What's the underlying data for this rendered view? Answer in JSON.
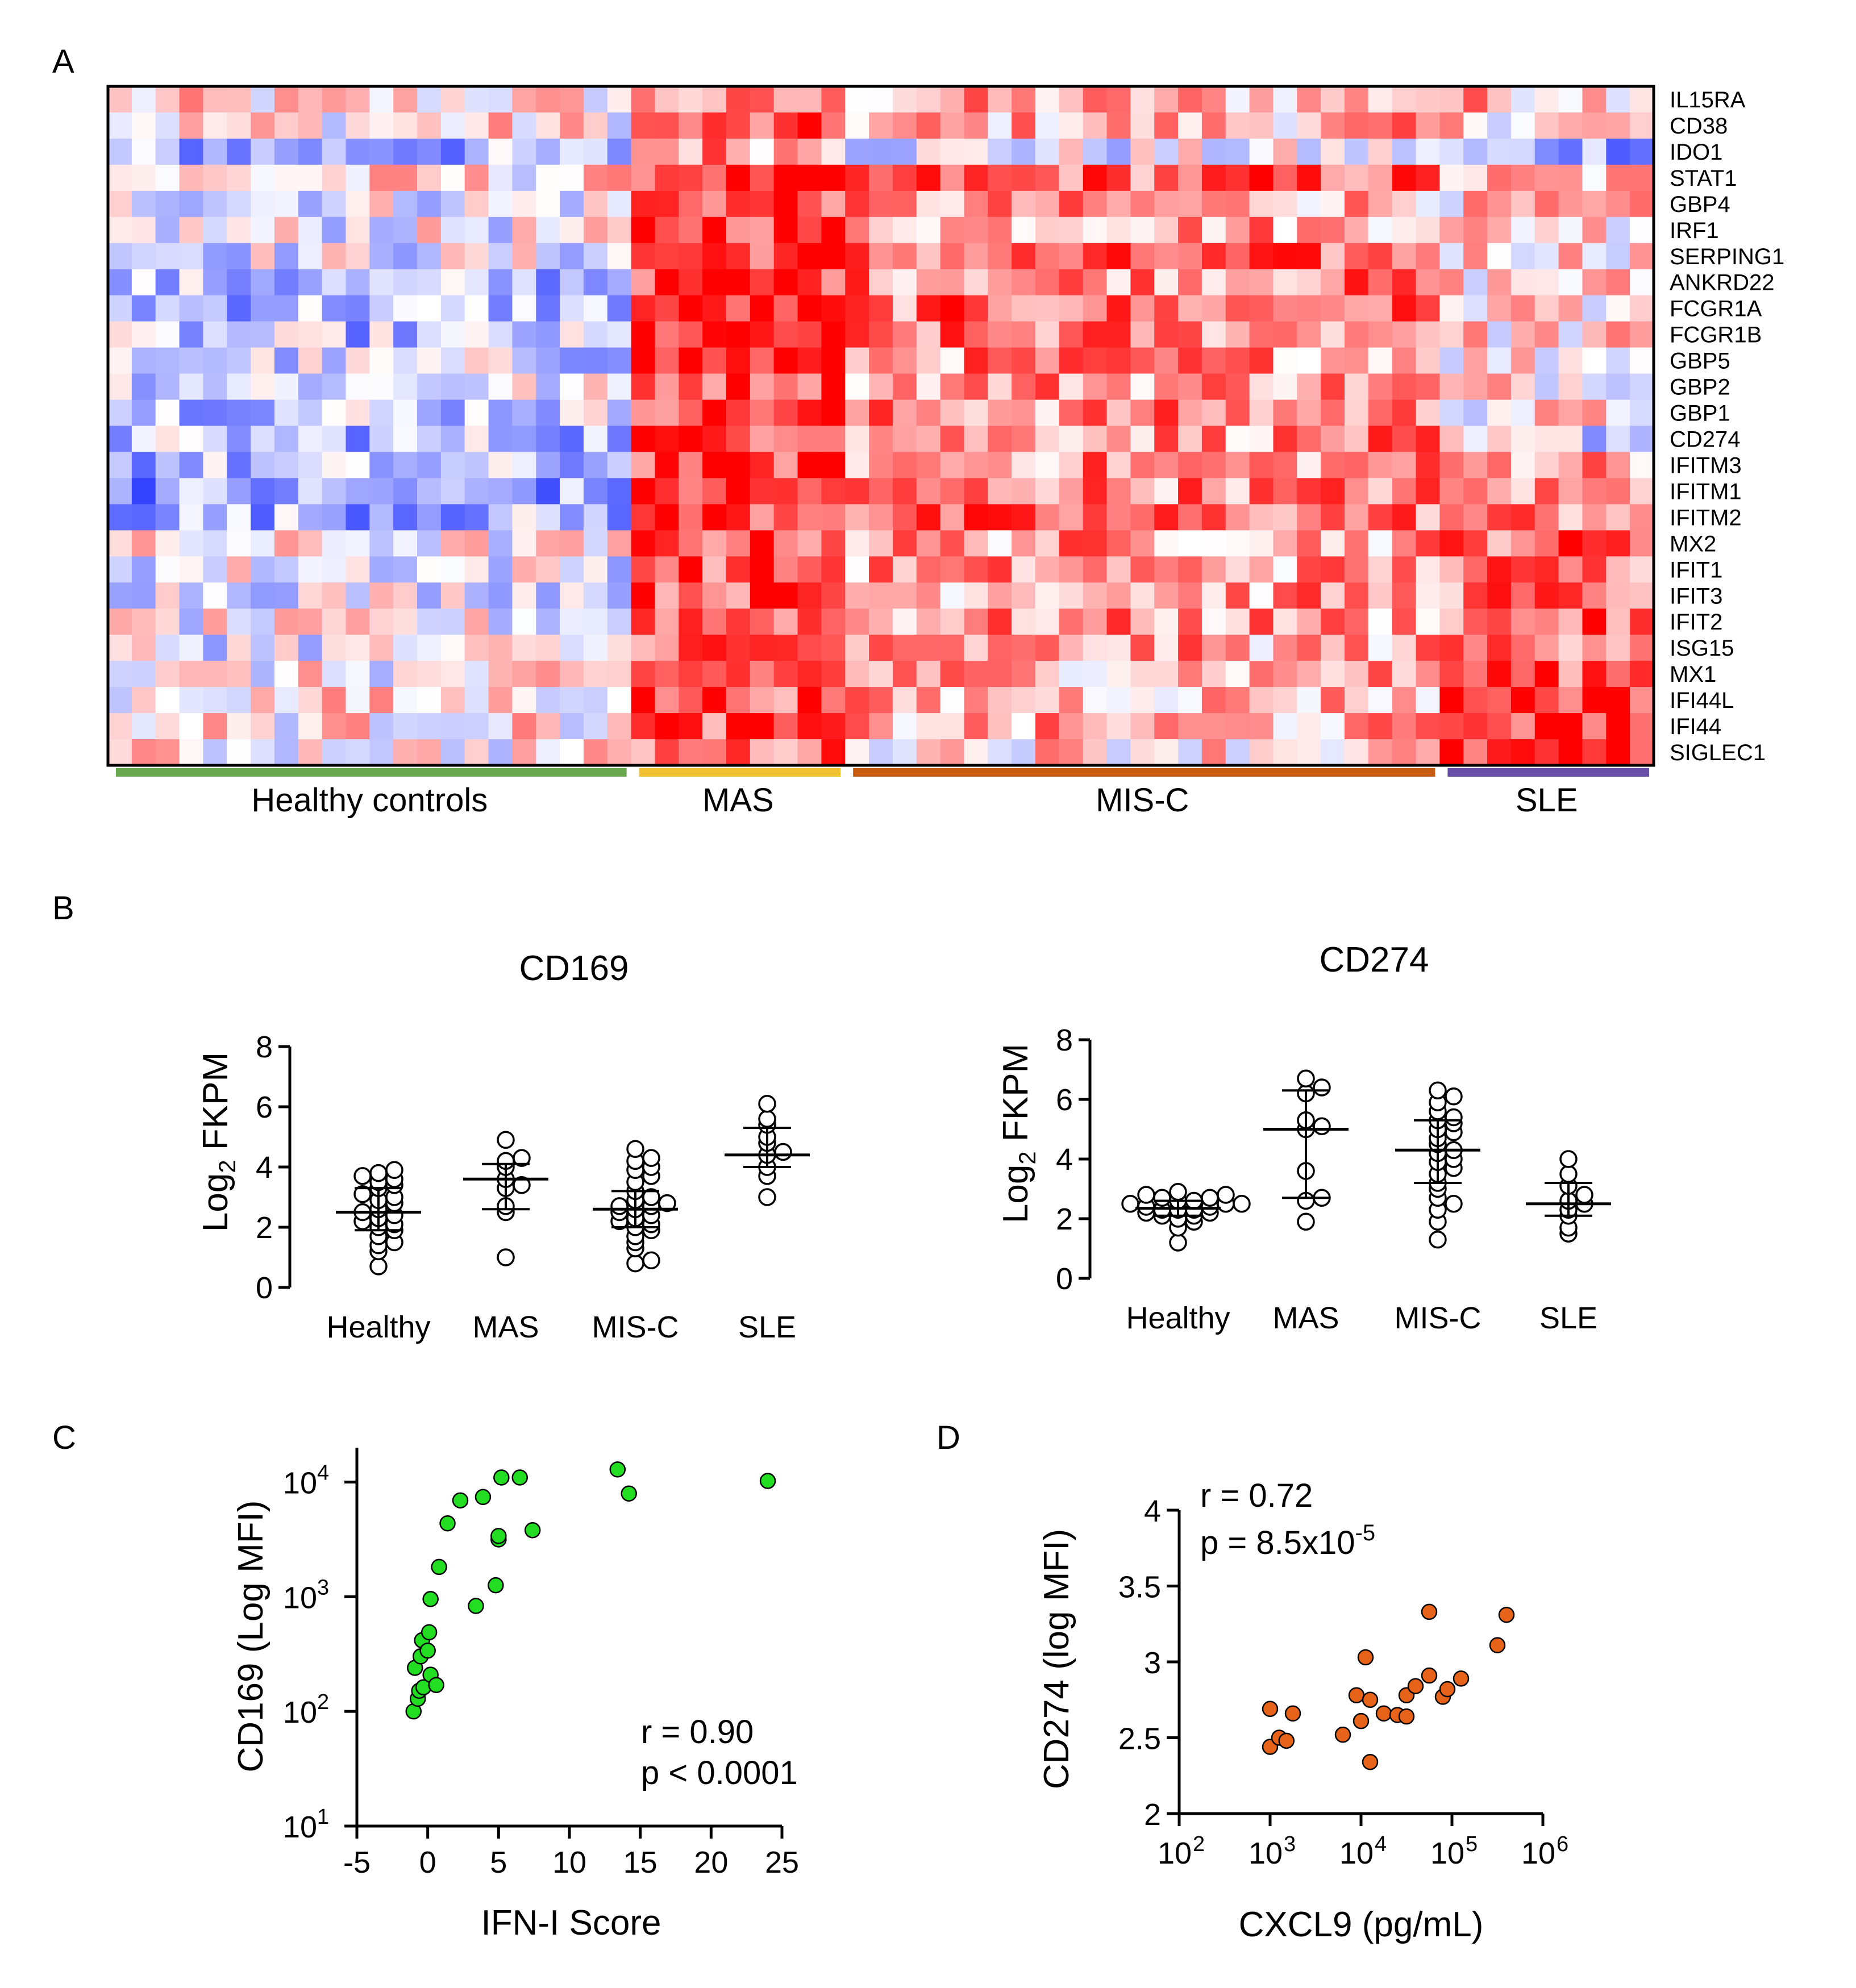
{
  "panels": {
    "a": "A",
    "b": "B",
    "c": "C",
    "d": "D"
  },
  "heatmap": {
    "genes": [
      "IL15RA",
      "CD38",
      "IDO1",
      "STAT1",
      "GBP4",
      "IRF1",
      "SERPING1",
      "ANKRD22",
      "FCGR1A",
      "FCGR1B",
      "GBP5",
      "GBP2",
      "GBP1",
      "CD274",
      "IFITM3",
      "IFITM1",
      "IFITM2",
      "MX2",
      "IFIT1",
      "IFIT3",
      "IFIT2",
      "ISG15",
      "MX1",
      "IFI44L",
      "IFI44",
      "SIGLEC1"
    ],
    "n_columns": 65,
    "color_low": "#1a2cff",
    "color_mid": "#ffffff",
    "color_high": "#ff0000",
    "groups": [
      {
        "label": "Healthy controls",
        "n": 22,
        "color": "#6aa84f"
      },
      {
        "label": "MAS",
        "n": 9,
        "color": "#f1c232"
      },
      {
        "label": "MIS-C",
        "n": 25,
        "color": "#c55a11"
      },
      {
        "label": "SLE",
        "n": 9,
        "color": "#674ea7"
      }
    ],
    "pattern": [
      {
        "gene": "IL15RA",
        "bias": [
          0.1,
          0.35,
          0.3,
          0.3
        ]
      },
      {
        "gene": "CD38",
        "bias": [
          0.1,
          0.55,
          0.3,
          0.2
        ]
      },
      {
        "gene": "IDO1",
        "bias": [
          -0.4,
          0.45,
          -0.1,
          -0.35
        ]
      },
      {
        "gene": "STAT1",
        "bias": [
          0.1,
          0.85,
          0.6,
          0.25
        ]
      },
      {
        "gene": "GBP4",
        "bias": [
          -0.05,
          0.75,
          0.35,
          0.15
        ]
      },
      {
        "gene": "IRF1",
        "bias": [
          -0.05,
          0.8,
          0.4,
          0.2
        ]
      },
      {
        "gene": "SERPING1",
        "bias": [
          -0.1,
          0.8,
          0.55,
          0.2
        ]
      },
      {
        "gene": "ANKRD22",
        "bias": [
          -0.35,
          0.8,
          0.5,
          0.15
        ]
      },
      {
        "gene": "FCGR1A",
        "bias": [
          -0.3,
          0.8,
          0.55,
          0.2
        ]
      },
      {
        "gene": "FCGR1B",
        "bias": [
          -0.3,
          0.8,
          0.5,
          0.15
        ]
      },
      {
        "gene": "GBP5",
        "bias": [
          -0.2,
          0.8,
          0.45,
          0.1
        ]
      },
      {
        "gene": "GBP2",
        "bias": [
          -0.1,
          0.75,
          0.45,
          0.15
        ]
      },
      {
        "gene": "GBP1",
        "bias": [
          -0.2,
          0.8,
          0.45,
          0.1
        ]
      },
      {
        "gene": "CD274",
        "bias": [
          -0.3,
          0.8,
          0.45,
          -0.15
        ]
      },
      {
        "gene": "IFITM3",
        "bias": [
          -0.35,
          0.75,
          0.45,
          0.45
        ]
      },
      {
        "gene": "IFITM1",
        "bias": [
          -0.45,
          0.75,
          0.5,
          0.4
        ]
      },
      {
        "gene": "IFITM2",
        "bias": [
          -0.35,
          0.75,
          0.55,
          0.5
        ]
      },
      {
        "gene": "MX2",
        "bias": [
          0.0,
          0.7,
          0.4,
          0.65
        ]
      },
      {
        "gene": "IFIT1",
        "bias": [
          -0.05,
          0.7,
          0.4,
          0.55
        ]
      },
      {
        "gene": "IFIT3",
        "bias": [
          -0.05,
          0.7,
          0.4,
          0.55
        ]
      },
      {
        "gene": "IFIT2",
        "bias": [
          -0.05,
          0.7,
          0.4,
          0.55
        ]
      },
      {
        "gene": "ISG15",
        "bias": [
          -0.05,
          0.7,
          0.35,
          0.6
        ]
      },
      {
        "gene": "MX1",
        "bias": [
          0.0,
          0.7,
          0.35,
          0.7
        ]
      },
      {
        "gene": "IFI44L",
        "bias": [
          0.1,
          0.7,
          0.3,
          0.85
        ]
      },
      {
        "gene": "IFI44",
        "bias": [
          0.1,
          0.7,
          0.3,
          0.85
        ]
      },
      {
        "gene": "SIGLEC1",
        "bias": [
          0.05,
          0.55,
          0.2,
          0.75
        ]
      }
    ]
  },
  "chart_data": [
    {
      "id": "B-left",
      "type": "scatter",
      "title": "CD169",
      "ylabel": "Log2 FKPM",
      "ylabel_main": "Log",
      "ylabel_sub": "2",
      "ylabel_rest": " FKPM",
      "ylim": [
        0,
        8
      ],
      "yticks": [
        "0",
        "2",
        "4",
        "6",
        "8"
      ],
      "categories": [
        "Healthy",
        "MAS",
        "MIS-C",
        "SLE"
      ],
      "series": [
        {
          "name": "Healthy",
          "values": [
            0.7,
            1.2,
            1.4,
            1.5,
            1.7,
            1.9,
            2.0,
            2.1,
            2.2,
            2.3,
            2.4,
            2.5,
            2.6,
            2.8,
            2.9,
            3.0,
            3.1,
            3.3,
            3.4,
            3.5,
            3.6,
            3.7,
            3.8,
            3.9
          ],
          "median": 2.5,
          "q1": 1.9,
          "q3": 3.3
        },
        {
          "name": "MAS",
          "values": [
            1.0,
            2.5,
            2.7,
            3.3,
            3.4,
            3.6,
            4.0,
            4.2,
            4.3,
            4.9
          ],
          "median": 3.6,
          "q1": 2.6,
          "q3": 4.1
        },
        {
          "name": "MIS-C",
          "values": [
            0.8,
            0.9,
            1.3,
            1.5,
            1.7,
            1.9,
            2.0,
            2.1,
            2.2,
            2.3,
            2.4,
            2.5,
            2.6,
            2.7,
            2.7,
            2.8,
            2.9,
            3.0,
            3.2,
            3.5,
            3.7,
            3.9,
            4.0,
            4.2,
            4.3,
            4.6
          ],
          "median": 2.6,
          "q1": 2.0,
          "q3": 3.2
        },
        {
          "name": "SLE",
          "values": [
            3.0,
            3.7,
            4.0,
            4.4,
            4.5,
            4.8,
            5.0,
            5.4,
            5.6,
            6.1
          ],
          "median": 4.4,
          "q1": 4.0,
          "q3": 5.3
        }
      ]
    },
    {
      "id": "B-right",
      "type": "scatter",
      "title": "CD274",
      "ylabel": "Log2 FKPM",
      "ylabel_main": "Log",
      "ylabel_sub": "2",
      "ylabel_rest": " FKPM",
      "ylim": [
        0,
        8
      ],
      "yticks": [
        "0",
        "2",
        "4",
        "6",
        "8"
      ],
      "categories": [
        "Healthy",
        "MAS",
        "MIS-C",
        "SLE"
      ],
      "series": [
        {
          "name": "Healthy",
          "values": [
            1.2,
            1.7,
            1.9,
            2.0,
            2.1,
            2.2,
            2.2,
            2.3,
            2.3,
            2.4,
            2.4,
            2.5,
            2.5,
            2.6,
            2.6,
            2.7,
            2.8,
            2.8,
            2.9,
            2.1,
            2.3,
            2.5,
            2.7
          ],
          "median": 2.35,
          "q1": 2.1,
          "q3": 2.6
        },
        {
          "name": "MAS",
          "values": [
            1.9,
            2.6,
            2.7,
            3.6,
            5.0,
            5.1,
            5.3,
            6.2,
            6.4,
            6.7
          ],
          "median": 5.0,
          "q1": 2.7,
          "q3": 6.3
        },
        {
          "name": "MIS-C",
          "values": [
            1.3,
            1.9,
            2.3,
            2.5,
            2.7,
            3.0,
            3.2,
            3.5,
            3.7,
            3.9,
            4.0,
            4.2,
            4.3,
            4.5,
            4.7,
            4.9,
            5.0,
            5.2,
            5.3,
            5.4,
            5.6,
            5.9,
            6.1,
            6.3
          ],
          "median": 4.3,
          "q1": 3.2,
          "q3": 5.3
        },
        {
          "name": "SLE",
          "values": [
            1.5,
            1.7,
            2.1,
            2.3,
            2.5,
            2.6,
            2.8,
            3.1,
            3.5,
            4.0
          ],
          "median": 2.5,
          "q1": 2.1,
          "q3": 3.2
        }
      ]
    },
    {
      "id": "C",
      "type": "scatter",
      "xlabel": "IFN-I Score",
      "ylabel": "CD169 (Log MFI)",
      "xlim": [
        -5,
        25
      ],
      "ylim": [
        1,
        4.3
      ],
      "yscale": "log",
      "xticks": [
        "-5",
        "0",
        "5",
        "10",
        "15",
        "20",
        "25"
      ],
      "yticks": [
        {
          "base": "10",
          "exp": "1"
        },
        {
          "base": "10",
          "exp": "2"
        },
        {
          "base": "10",
          "exp": "3"
        },
        {
          "base": "10",
          "exp": "4"
        }
      ],
      "color": "#22dd22",
      "points": [
        [
          -1.0,
          2.0
        ],
        [
          -0.7,
          2.11
        ],
        [
          -0.6,
          2.18
        ],
        [
          -0.9,
          2.38
        ],
        [
          -0.3,
          2.21
        ],
        [
          -0.5,
          2.48
        ],
        [
          -0.4,
          2.62
        ],
        [
          0.0,
          2.53
        ],
        [
          0.2,
          2.32
        ],
        [
          0.6,
          2.23
        ],
        [
          0.1,
          2.69
        ],
        [
          0.2,
          2.98
        ],
        [
          0.8,
          3.26
        ],
        [
          1.4,
          3.64
        ],
        [
          2.3,
          3.84
        ],
        [
          3.4,
          2.92
        ],
        [
          3.9,
          3.87
        ],
        [
          4.8,
          3.1
        ],
        [
          5.0,
          3.5
        ],
        [
          5.0,
          3.53
        ],
        [
          5.2,
          4.04
        ],
        [
          6.5,
          4.04
        ],
        [
          7.4,
          3.58
        ],
        [
          13.4,
          4.11
        ],
        [
          14.2,
          3.9
        ],
        [
          24.0,
          4.01
        ]
      ],
      "annotation_r": "r = 0.90",
      "annotation_p": "p < 0.0001"
    },
    {
      "id": "D",
      "type": "scatter",
      "xlabel": "CXCL9 (pg/mL)",
      "ylabel": "CD274 (log MFI)",
      "xscale": "log",
      "xlim": [
        2,
        6
      ],
      "ylim": [
        2,
        4
      ],
      "xticks": [
        {
          "base": "10",
          "exp": "2"
        },
        {
          "base": "10",
          "exp": "3"
        },
        {
          "base": "10",
          "exp": "4"
        },
        {
          "base": "10",
          "exp": "5"
        },
        {
          "base": "10",
          "exp": "6"
        }
      ],
      "yticks": [
        "2",
        "2.5",
        "3",
        "3.5",
        "4"
      ],
      "color": "#e8631a",
      "points": [
        [
          3.0,
          2.69
        ],
        [
          3.0,
          2.44
        ],
        [
          3.1,
          2.5
        ],
        [
          3.18,
          2.48
        ],
        [
          3.25,
          2.66
        ],
        [
          3.8,
          2.52
        ],
        [
          3.95,
          2.78
        ],
        [
          4.0,
          2.61
        ],
        [
          4.1,
          2.75
        ],
        [
          4.05,
          3.03
        ],
        [
          4.1,
          2.34
        ],
        [
          4.25,
          2.66
        ],
        [
          4.4,
          2.65
        ],
        [
          4.5,
          2.78
        ],
        [
          4.5,
          2.64
        ],
        [
          4.6,
          2.84
        ],
        [
          4.75,
          2.91
        ],
        [
          4.75,
          3.33
        ],
        [
          4.9,
          2.77
        ],
        [
          4.95,
          2.82
        ],
        [
          5.1,
          2.89
        ],
        [
          5.5,
          3.11
        ],
        [
          5.6,
          3.31
        ]
      ],
      "annotation_r": "r = 0.72",
      "annotation_p_main": "p = 8.5x10",
      "annotation_p_exp": "-5"
    }
  ]
}
